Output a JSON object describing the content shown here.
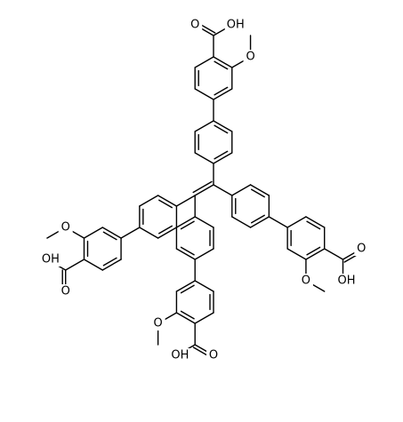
{
  "groups": [
    {
      "carbonyl": "O",
      "hydroxyl": "OH",
      "methoxy": "O"
    },
    {
      "carbonyl": "O",
      "hydroxyl": "OH",
      "methoxy": "O"
    },
    {
      "carbonyl": "O",
      "hydroxyl": "OH",
      "methoxy": "O"
    },
    {
      "carbonyl": "O",
      "hydroxyl": "OH",
      "methoxy": "O"
    }
  ]
}
